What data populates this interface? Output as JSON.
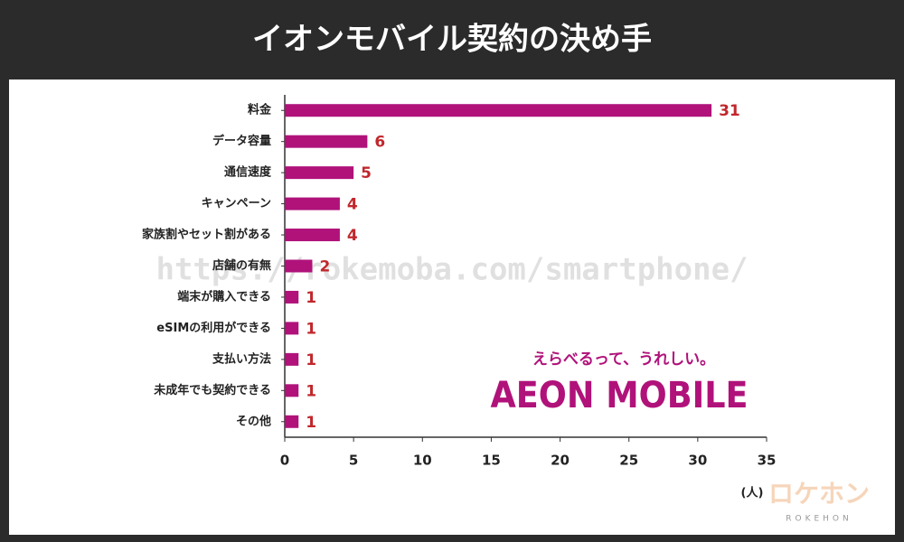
{
  "chart_data": {
    "type": "bar",
    "orientation": "horizontal",
    "title": "イオンモバイル契約の決め手",
    "categories": [
      "料金",
      "データ容量",
      "通信速度",
      "キャンペーン",
      "家族割やセット割がある",
      "店舗の有無",
      "端末が購入できる",
      "eSIMの利用ができる",
      "支払い方法",
      "未成年でも契約できる",
      "その他"
    ],
    "values": [
      31,
      6,
      5,
      4,
      4,
      2,
      1,
      1,
      1,
      1,
      1
    ],
    "color": "#b0127a",
    "label_color": "#c0282d",
    "xlabel": "(人)",
    "xlim": [
      0,
      35
    ],
    "xticks": [
      0,
      5,
      10,
      15,
      20,
      25,
      30,
      35
    ]
  },
  "watermark": "https://rokemoba.com/smartphone/",
  "brand": {
    "tagline": "えらべるって、うれしい。",
    "name": "AEON MOBILE"
  },
  "site_logo": {
    "name": "ロケホン",
    "romaji": "ROKEHON"
  }
}
